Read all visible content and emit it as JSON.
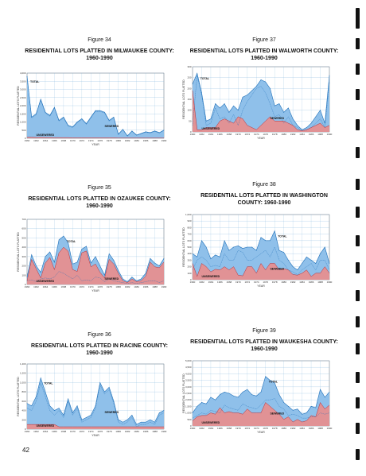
{
  "page_number": "42",
  "colors": {
    "total": "#8fc0ea",
    "total_line": "#1e6fb8",
    "sewered": "#f08a86",
    "sewered_line": "#b5303a",
    "unsewered": "#b5303a",
    "grid": "#7fb2dc",
    "binding": "#111111"
  },
  "chart_data": [
    {
      "id": "fig34",
      "type": "area",
      "figure_label": "Figure 34",
      "title": "RESIDENTIAL LOTS PLATTED IN MILWAUKEE COUNTY: 1960-1990",
      "ylabel": "RESIDENTIAL LOTS PLATTED",
      "xlabel": "YEAR",
      "x": [
        1960,
        1961,
        1962,
        1963,
        1964,
        1965,
        1966,
        1967,
        1968,
        1969,
        1970,
        1971,
        1972,
        1973,
        1974,
        1975,
        1976,
        1977,
        1978,
        1979,
        1980,
        1981,
        1982,
        1983,
        1984,
        1985,
        1986,
        1987,
        1988,
        1989,
        1990
      ],
      "xticks": [
        "1960",
        "1962",
        "1964",
        "1966",
        "1968",
        "1970",
        "1972",
        "1974",
        "1976",
        "1978",
        "1980",
        "1982",
        "1984",
        "1986",
        "1988",
        "1990"
      ],
      "ylim": [
        0,
        4000
      ],
      "yticks": [
        "0",
        "500",
        "1,000",
        "1,500",
        "2,000",
        "2,500",
        "3,000",
        "3,500",
        "4,000"
      ],
      "series": [
        {
          "name": "TOTAL",
          "values": [
            3800,
            1300,
            1500,
            2400,
            1600,
            1400,
            1900,
            1100,
            1300,
            800,
            700,
            1000,
            1200,
            900,
            1300,
            1700,
            1700,
            1600,
            1100,
            1300,
            250,
            550,
            150,
            450,
            200,
            300,
            400,
            350,
            450,
            350,
            500
          ]
        },
        {
          "name": "SEWERED",
          "values": [
            3800,
            1250,
            1450,
            2350,
            1550,
            1350,
            1850,
            1050,
            1250,
            750,
            650,
            950,
            1150,
            850,
            1250,
            1650,
            1650,
            1550,
            1050,
            1250,
            220,
            520,
            120,
            420,
            170,
            270,
            370,
            320,
            420,
            320,
            470
          ]
        },
        {
          "name": "UNSEWERED",
          "values": [
            60,
            60,
            50,
            60,
            50,
            50,
            40,
            40,
            40,
            40,
            30,
            30,
            30,
            30,
            30,
            30,
            30,
            30,
            30,
            30,
            20,
            20,
            20,
            20,
            20,
            20,
            20,
            20,
            20,
            20,
            20
          ]
        }
      ],
      "labels": {
        "total": "TOTAL",
        "sewered": "SEWERED",
        "unsewered": "UNSEWERED"
      }
    },
    {
      "id": "fig37",
      "type": "area",
      "figure_label": "Figure 37",
      "title": "RESIDENTIAL LOTS PLATTED IN WALWORTH COUNTY: 1960-1990",
      "ylabel": "RESIDENTIAL LOTS PLATTED",
      "xlabel": "YEAR",
      "x": [
        1960,
        1961,
        1962,
        1963,
        1964,
        1965,
        1966,
        1967,
        1968,
        1969,
        1970,
        1971,
        1972,
        1973,
        1974,
        1975,
        1976,
        1977,
        1978,
        1979,
        1980,
        1981,
        1982,
        1983,
        1984,
        1985,
        1986,
        1987,
        1988,
        1989,
        1990
      ],
      "xticks": [
        "1960",
        "1962",
        "1964",
        "1966",
        "1968",
        "1970",
        "1972",
        "1974",
        "1976",
        "1978",
        "1980",
        "1982",
        "1984",
        "1986",
        "1988",
        "1990"
      ],
      "ylim": [
        0,
        300
      ],
      "yticks": [
        "0",
        "50",
        "100",
        "150",
        "200",
        "250",
        "300"
      ],
      "series": [
        {
          "name": "TOTAL",
          "values": [
            220,
            270,
            180,
            50,
            60,
            130,
            110,
            130,
            90,
            120,
            100,
            160,
            170,
            190,
            210,
            240,
            230,
            200,
            120,
            130,
            90,
            110,
            60,
            30,
            10,
            20,
            40,
            70,
            100,
            40,
            260
          ]
        },
        {
          "name": "SEWERED",
          "values": [
            30,
            260,
            170,
            30,
            40,
            110,
            60,
            70,
            40,
            80,
            30,
            100,
            140,
            170,
            200,
            210,
            180,
            130,
            70,
            80,
            40,
            70,
            30,
            20,
            5,
            10,
            20,
            40,
            60,
            20,
            230
          ]
        },
        {
          "name": "UNSEWERED",
          "values": [
            190,
            10,
            10,
            20,
            20,
            20,
            50,
            60,
            50,
            40,
            70,
            60,
            30,
            20,
            10,
            30,
            50,
            70,
            50,
            50,
            50,
            40,
            30,
            10,
            5,
            10,
            20,
            30,
            40,
            20,
            30
          ]
        }
      ],
      "labels": {
        "total": "TOTAL",
        "sewered": "SEWERED",
        "unsewered": "UNSEWERED"
      }
    },
    {
      "id": "fig35",
      "type": "area",
      "figure_label": "Figure 35",
      "title": "RESIDENTIAL LOTS PLATTED IN OZAUKEE COUNTY: 1960-1990",
      "ylabel": "RESIDENTIAL LOTS PLATTED",
      "xlabel": "YEAR",
      "x": [
        1960,
        1961,
        1962,
        1963,
        1964,
        1965,
        1966,
        1967,
        1968,
        1969,
        1970,
        1971,
        1972,
        1973,
        1974,
        1975,
        1976,
        1977,
        1978,
        1979,
        1980,
        1981,
        1982,
        1983,
        1984,
        1985,
        1986,
        1987,
        1988,
        1989,
        1990
      ],
      "xticks": [
        "1960",
        "1962",
        "1964",
        "1966",
        "1968",
        "1970",
        "1972",
        "1974",
        "1976",
        "1978",
        "1980",
        "1982",
        "1984",
        "1986",
        "1988",
        "1990"
      ],
      "ylim": [
        0,
        700
      ],
      "yticks": [
        "0",
        "100",
        "200",
        "300",
        "400",
        "500",
        "600",
        "700"
      ],
      "series": [
        {
          "name": "TOTAL",
          "values": [
            80,
            320,
            200,
            130,
            300,
            350,
            240,
            480,
            520,
            450,
            220,
            240,
            380,
            410,
            230,
            300,
            200,
            100,
            330,
            260,
            150,
            60,
            30,
            80,
            40,
            60,
            120,
            280,
            230,
            200,
            280
          ]
        },
        {
          "name": "SEWERED",
          "values": [
            40,
            50,
            30,
            60,
            70,
            60,
            80,
            140,
            120,
            90,
            60,
            100,
            40,
            50,
            40,
            80,
            70,
            30,
            60,
            40,
            30,
            20,
            10,
            20,
            10,
            20,
            30,
            40,
            40,
            20,
            40
          ]
        },
        {
          "name": "UNSEWERED",
          "values": [
            40,
            270,
            170,
            70,
            230,
            290,
            160,
            340,
            400,
            360,
            160,
            140,
            340,
            360,
            190,
            220,
            130,
            70,
            270,
            220,
            120,
            40,
            20,
            60,
            30,
            40,
            90,
            240,
            190,
            180,
            240
          ]
        }
      ],
      "labels": {
        "total": "TOTAL",
        "sewered": "SEWERED",
        "unsewered": "UNSEWERED"
      }
    },
    {
      "id": "fig38",
      "type": "area",
      "figure_label": "Figure 38",
      "title": "RESIDENTIAL LOTS PLATTED IN WASHINGTON COUNTY: 1960-1990",
      "ylabel": "RESIDENTIAL LOTS PLATTED",
      "xlabel": "YEAR",
      "x": [
        1960,
        1961,
        1962,
        1963,
        1964,
        1965,
        1966,
        1967,
        1968,
        1969,
        1970,
        1971,
        1972,
        1973,
        1974,
        1975,
        1976,
        1977,
        1978,
        1979,
        1980,
        1981,
        1982,
        1983,
        1984,
        1985,
        1986,
        1987,
        1988,
        1989,
        1990
      ],
      "xticks": [
        "1960",
        "1962",
        "1964",
        "1966",
        "1968",
        "1970",
        "1972",
        "1974",
        "1976",
        "1978",
        "1980",
        "1982",
        "1984",
        "1986",
        "1988",
        "1990"
      ],
      "ylim": [
        0,
        1000
      ],
      "yticks": [
        "0",
        "100",
        "200",
        "300",
        "400",
        "500",
        "600",
        "700",
        "800",
        "900",
        "1,000"
      ],
      "series": [
        {
          "name": "TOTAL",
          "values": [
            400,
            350,
            600,
            500,
            320,
            380,
            350,
            600,
            450,
            500,
            520,
            480,
            500,
            500,
            450,
            650,
            600,
            600,
            750,
            450,
            420,
            300,
            200,
            150,
            250,
            350,
            300,
            250,
            400,
            500,
            250
          ]
        },
        {
          "name": "SEWERED",
          "values": [
            150,
            300,
            350,
            300,
            200,
            220,
            200,
            400,
            300,
            300,
            450,
            420,
            300,
            300,
            350,
            400,
            450,
            350,
            500,
            300,
            250,
            150,
            120,
            80,
            150,
            200,
            250,
            150,
            300,
            300,
            150
          ]
        },
        {
          "name": "UNSEWERED",
          "values": [
            250,
            50,
            250,
            200,
            120,
            160,
            150,
            200,
            150,
            200,
            70,
            60,
            200,
            200,
            100,
            250,
            150,
            250,
            250,
            150,
            170,
            150,
            80,
            70,
            100,
            150,
            50,
            100,
            100,
            200,
            100
          ]
        }
      ],
      "labels": {
        "total": "TOTAL",
        "sewered": "SEWERED",
        "unsewered": "UNSEWERED"
      }
    },
    {
      "id": "fig36",
      "type": "area",
      "figure_label": "Figure 36",
      "title": "RESIDENTIAL LOTS PLATTED IN RACINE COUNTY: 1960-1990",
      "ylabel": "RESIDENTIAL LOTS PLATTED",
      "xlabel": "YEAR",
      "x": [
        1960,
        1961,
        1962,
        1963,
        1964,
        1965,
        1966,
        1967,
        1968,
        1969,
        1970,
        1971,
        1972,
        1973,
        1974,
        1975,
        1976,
        1977,
        1978,
        1979,
        1980,
        1981,
        1982,
        1983,
        1984,
        1985,
        1986,
        1987,
        1988,
        1989,
        1990
      ],
      "xticks": [
        "1960",
        "1962",
        "1964",
        "1966",
        "1968",
        "1970",
        "1972",
        "1974",
        "1976",
        "1978",
        "1980",
        "1982",
        "1984",
        "1986",
        "1988",
        "1990"
      ],
      "ylim": [
        0,
        1400
      ],
      "yticks": [
        "0",
        "200",
        "400",
        "600",
        "800",
        "1,000",
        "1,200",
        "1,400"
      ],
      "series": [
        {
          "name": "TOTAL",
          "values": [
            550,
            500,
            700,
            1100,
            800,
            500,
            400,
            450,
            300,
            650,
            350,
            500,
            200,
            250,
            300,
            500,
            1000,
            800,
            900,
            600,
            200,
            150,
            200,
            300,
            100,
            150,
            150,
            200,
            150,
            350,
            400
          ]
        },
        {
          "name": "SEWERED",
          "values": [
            450,
            400,
            600,
            1000,
            700,
            400,
            300,
            400,
            250,
            600,
            300,
            450,
            150,
            200,
            250,
            450,
            950,
            750,
            850,
            550,
            150,
            100,
            150,
            250,
            50,
            100,
            100,
            150,
            100,
            300,
            350
          ]
        },
        {
          "name": "UNSEWERED",
          "values": [
            100,
            100,
            100,
            100,
            100,
            100,
            100,
            50,
            50,
            50,
            50,
            50,
            50,
            50,
            50,
            50,
            50,
            50,
            50,
            50,
            50,
            50,
            50,
            50,
            50,
            50,
            50,
            50,
            50,
            50,
            50
          ]
        }
      ],
      "labels": {
        "total": "TOTAL",
        "sewered": "SEWERED",
        "unsewered": "UNSEWERED"
      }
    },
    {
      "id": "fig39",
      "type": "area",
      "figure_label": "Figure 39",
      "title": "RESIDENTIAL LOTS PLATTED IN WAUKESHA COUNTY: 1960-1990",
      "ylabel": "RESIDENTIAL LOTS PLATTED",
      "xlabel": "YEAR",
      "x": [
        1960,
        1961,
        1962,
        1963,
        1964,
        1965,
        1966,
        1967,
        1968,
        1969,
        1970,
        1971,
        1972,
        1973,
        1974,
        1975,
        1976,
        1977,
        1978,
        1979,
        1980,
        1981,
        1982,
        1983,
        1984,
        1985,
        1986,
        1987,
        1988,
        1989,
        1990
      ],
      "xticks": [
        "1960",
        "1962",
        "1964",
        "1966",
        "1968",
        "1970",
        "1972",
        "1974",
        "1976",
        "1978",
        "1980",
        "1982",
        "1984",
        "1986",
        "1988",
        "1990"
      ],
      "ylim": [
        0,
        5000
      ],
      "yticks": [
        "0",
        "500",
        "1,000",
        "1,500",
        "2,000",
        "2,500",
        "3,000",
        "3,500",
        "4,000",
        "4,500",
        "5,000"
      ],
      "series": [
        {
          "name": "TOTAL",
          "values": [
            1000,
            1500,
            1800,
            1700,
            2200,
            2000,
            2400,
            2600,
            2500,
            2300,
            2200,
            2600,
            2800,
            2400,
            2300,
            2600,
            3800,
            3500,
            3300,
            2400,
            1800,
            1500,
            1200,
            1300,
            900,
            1000,
            1500,
            1400,
            2800,
            2200,
            2600
          ]
        },
        {
          "name": "SEWERED",
          "values": [
            600,
            800,
            1000,
            900,
            1200,
            1100,
            1000,
            1600,
            1400,
            1300,
            1200,
            1700,
            1500,
            1400,
            1300,
            1600,
            2000,
            2000,
            2100,
            1500,
            1300,
            800,
            900,
            800,
            600,
            600,
            700,
            700,
            1000,
            900,
            1000
          ]
        },
        {
          "name": "UNSEWERED",
          "values": [
            400,
            700,
            800,
            800,
            1000,
            900,
            1400,
            1000,
            1100,
            1000,
            1000,
            900,
            1300,
            1000,
            1000,
            1000,
            1800,
            1500,
            1200,
            900,
            500,
            700,
            300,
            500,
            300,
            400,
            800,
            700,
            1800,
            1300,
            1600
          ]
        }
      ],
      "labels": {
        "total": "TOTAL",
        "sewered": "SEWERED",
        "unsewered": "UNSEWERED"
      }
    }
  ]
}
